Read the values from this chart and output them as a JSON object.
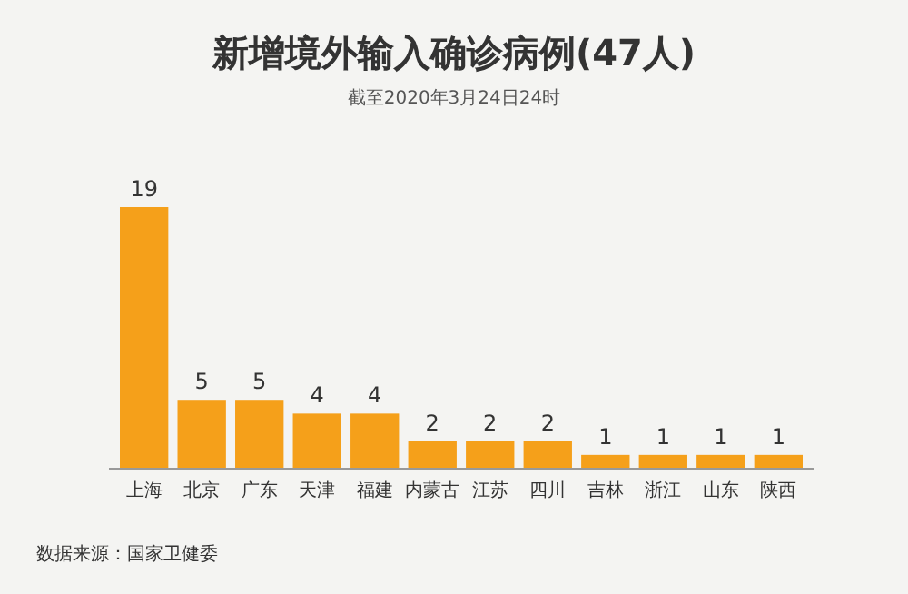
{
  "chart_data": {
    "type": "bar",
    "title": "新增境外输入确诊病例(47人)",
    "subtitle": "截至2020年3月24日24时",
    "categories": [
      "上海",
      "北京",
      "广东",
      "天津",
      "福建",
      "内蒙古",
      "江苏",
      "四川",
      "吉林",
      "浙江",
      "山东",
      "陕西"
    ],
    "values": [
      19,
      5,
      5,
      4,
      4,
      2,
      2,
      2,
      1,
      1,
      1,
      1
    ],
    "color": "#f5a01a",
    "data_labels": true,
    "annotations": [
      "数据来源：国家卫健委"
    ]
  }
}
